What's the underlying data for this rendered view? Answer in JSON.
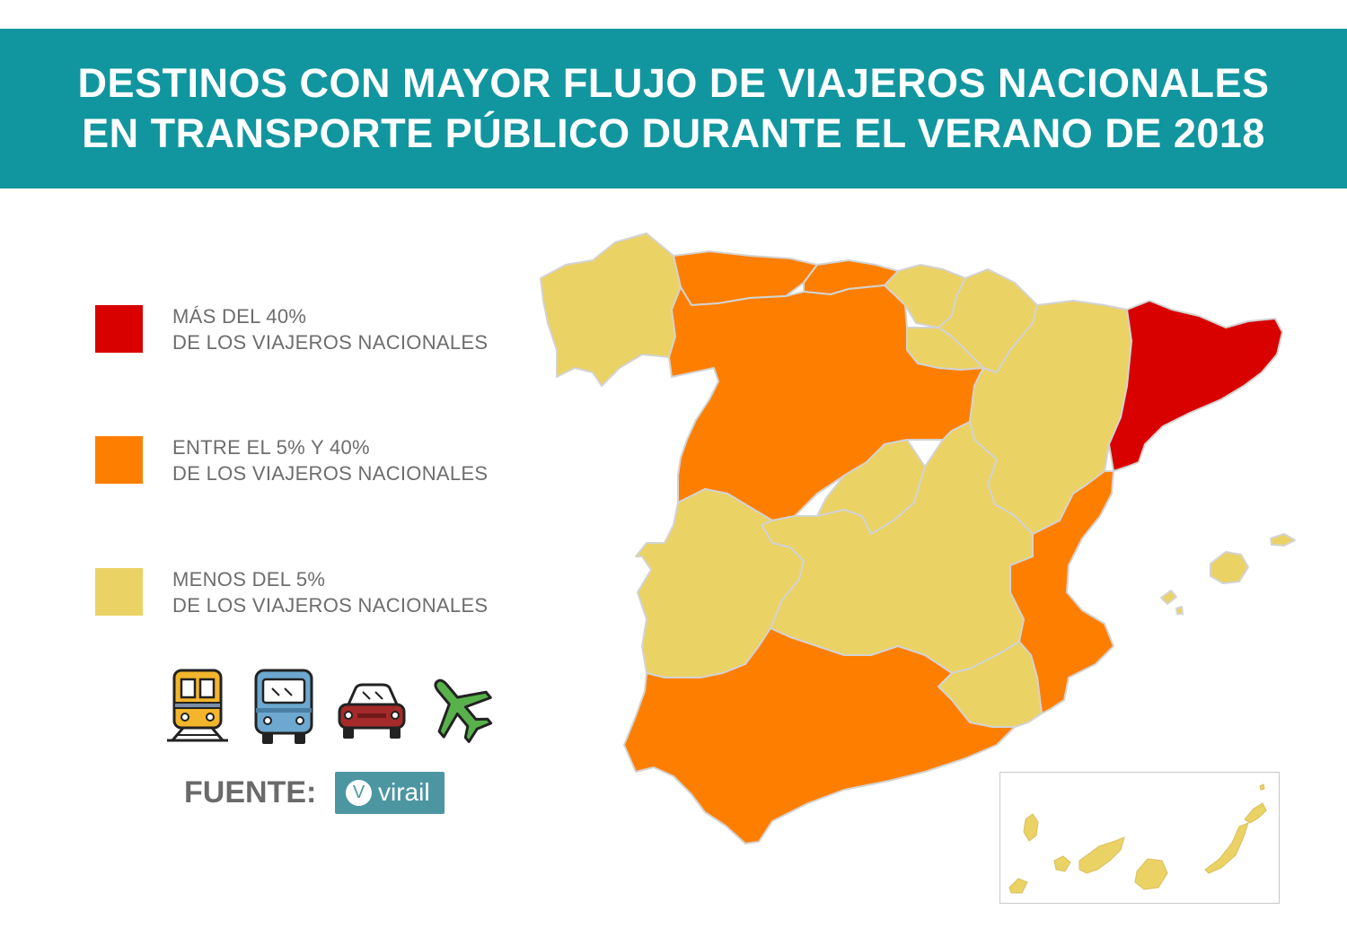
{
  "title": {
    "line1": "DESTINOS CON MAYOR FLUJO DE VIAJEROS NACIONALES",
    "line2": "EN TRANSPORTE PÚBLICO DURANTE EL VERANO DE 2018"
  },
  "legend": [
    {
      "color": "#d90000",
      "line1": "MÁS DEL 40%",
      "line2": "DE LOS VIAJEROS NACIONALES"
    },
    {
      "color": "#fe7f00",
      "line1": "ENTRE EL 5% Y 40%",
      "line2": "DE LOS VIAJEROS NACIONALES"
    },
    {
      "color": "#ebd264",
      "line1": "MENOS DEL 5%",
      "line2": "DE LOS VIAJEROS NACIONALES"
    }
  ],
  "transport_icons": [
    "train-icon",
    "bus-icon",
    "car-icon",
    "airplane-icon"
  ],
  "source": {
    "label": "FUENTE:",
    "logo_letter": "V",
    "logo_name": "virail"
  },
  "colors": {
    "banner": "#11969f",
    "high": "#d90000",
    "mid": "#fe7f00",
    "low": "#ebd264",
    "border": "#d0d0d0"
  },
  "regions": [
    {
      "name": "Galicia",
      "category": "low"
    },
    {
      "name": "Asturias",
      "category": "mid"
    },
    {
      "name": "Cantabria",
      "category": "mid"
    },
    {
      "name": "País Vasco",
      "category": "low"
    },
    {
      "name": "Navarra",
      "category": "low"
    },
    {
      "name": "La Rioja",
      "category": "low"
    },
    {
      "name": "Castilla y León",
      "category": "mid"
    },
    {
      "name": "Aragón",
      "category": "low"
    },
    {
      "name": "Cataluña",
      "category": "high"
    },
    {
      "name": "Madrid",
      "category": "low"
    },
    {
      "name": "Castilla-La Mancha",
      "category": "low"
    },
    {
      "name": "Extremadura",
      "category": "low"
    },
    {
      "name": "Comunidad Valenciana",
      "category": "mid"
    },
    {
      "name": "Murcia",
      "category": "low"
    },
    {
      "name": "Andalucía",
      "category": "mid"
    },
    {
      "name": "Islas Baleares",
      "category": "low"
    },
    {
      "name": "Canarias",
      "category": "low"
    }
  ]
}
